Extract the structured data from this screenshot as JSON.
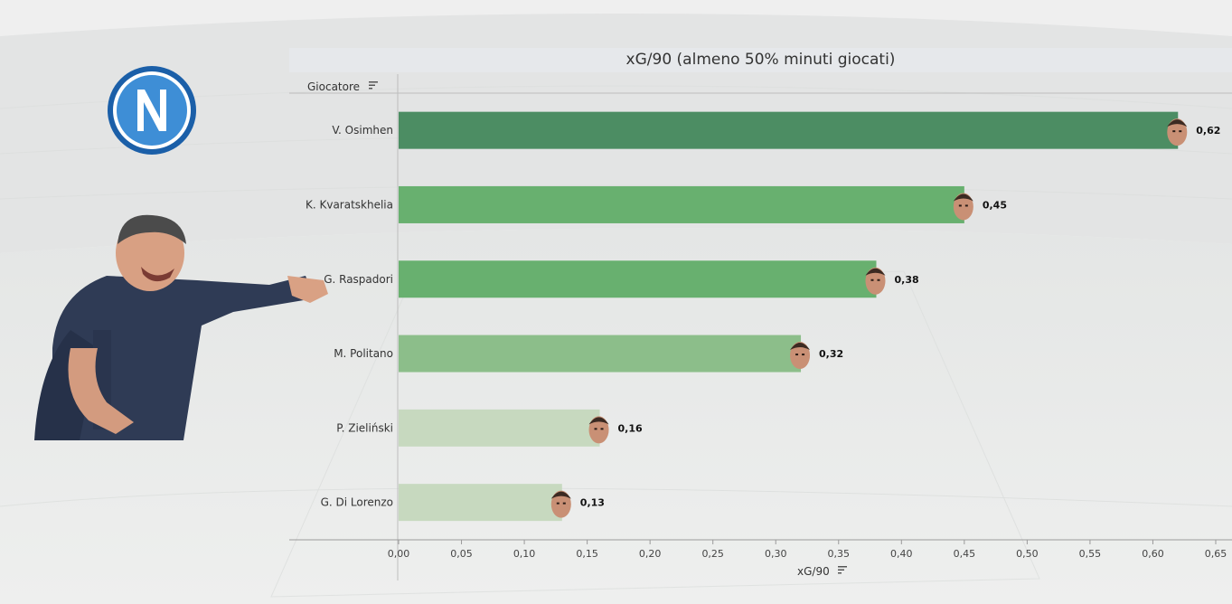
{
  "title": "xG/90 (almeno 50% minuti giocati)",
  "chart_data": {
    "type": "bar",
    "orientation": "horizontal",
    "title": "xG/90 (almeno 50% minuti giocati)",
    "categories_header": "Giocatore",
    "xlabel": "xG/90",
    "categories": [
      "V. Osimhen",
      "K. Kvaratskhelia",
      "G. Raspadori",
      "M. Politano",
      "P. Zieliński",
      "G. Di Lorenzo"
    ],
    "values": [
      0.62,
      0.45,
      0.38,
      0.32,
      0.16,
      0.13
    ],
    "value_labels": [
      "0,62",
      "0,45",
      "0,38",
      "0,32",
      "0,16",
      "0,13"
    ],
    "xlim": [
      0,
      0.65
    ],
    "xticks": [
      0,
      0.05,
      0.1,
      0.15,
      0.2,
      0.25,
      0.3,
      0.35,
      0.4,
      0.45,
      0.5,
      0.55,
      0.6,
      0.65
    ],
    "xtick_labels": [
      "0,00",
      "0,05",
      "0,10",
      "0,15",
      "0,20",
      "0,25",
      "0,30",
      "0,35",
      "0,40",
      "0,45",
      "0,50",
      "0,55",
      "0,60",
      "0,65"
    ],
    "grid": false,
    "color_scale": [
      "#c7d9bf",
      "#8cbe8a",
      "#68b06f",
      "#4c8d63"
    ],
    "bar_end_markers": "player-face-icon"
  },
  "icons": {
    "logo": "napoli-logo-icon",
    "coach": "coach-photo",
    "sort": "sort-icon"
  }
}
